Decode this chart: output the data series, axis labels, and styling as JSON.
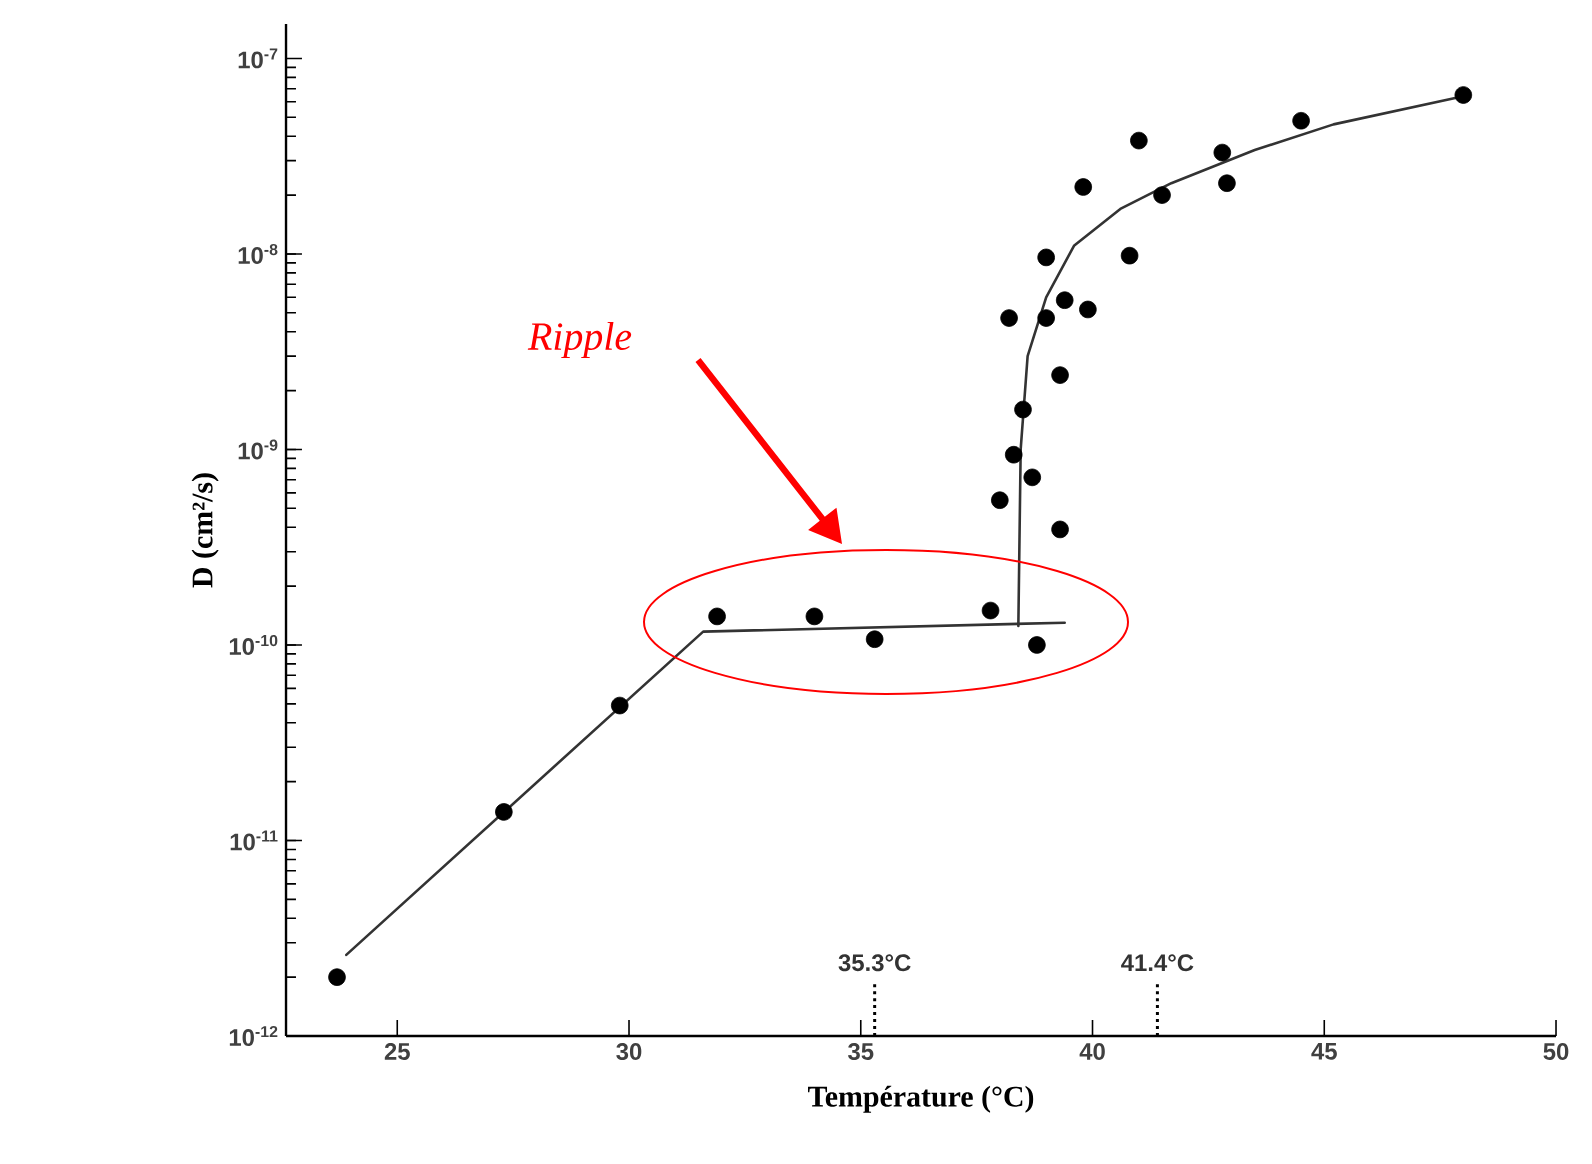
{
  "chart_data": {
    "type": "scatter",
    "xlabel": "Température (°C)",
    "ylabel": "D (cm²/s)",
    "log": "y",
    "marker": "circle",
    "line_style": "solid",
    "xlim": [
      22.6,
      50
    ],
    "ylim": [
      1e-12,
      1.5e-07
    ],
    "xticks": [
      25,
      30,
      35,
      40,
      45,
      50
    ],
    "yticks": [
      {
        "value": 1e-12,
        "label": "10$^{-12}$"
      },
      {
        "value": 1e-11,
        "label": "10$^{-11}$"
      },
      {
        "value": 1e-10,
        "label": "10$^{-10}$"
      },
      {
        "value": 1e-09,
        "label": "10$^{-9}$"
      },
      {
        "value": 1e-08,
        "label": "10$^{-8}$"
      },
      {
        "value": 1e-07,
        "label": "10$^{-7}$"
      }
    ],
    "series": [
      {
        "type": "scatter",
        "color": "#000000",
        "x": [
          23.7,
          27.3,
          29.8,
          31.9,
          34.0,
          35.3,
          37.8,
          38.8,
          38.0,
          39.3,
          38.7,
          38.3,
          38.5,
          39.3,
          38.2,
          39.0,
          39.4,
          39.9,
          39.0,
          40.8,
          39.8,
          41.0,
          41.5,
          42.8,
          42.9,
          44.5,
          48.0
        ],
        "values": [
          2e-12,
          1.4e-11,
          4.9e-11,
          1.4e-10,
          1.4e-10,
          1.07e-10,
          1.5e-10,
          1e-10,
          5.5e-10,
          3.9e-10,
          7.2e-10,
          9.4e-10,
          1.6e-09,
          2.4e-09,
          4.7e-09,
          4.7e-09,
          5.8e-09,
          5.2e-09,
          9.6e-09,
          9.8e-09,
          2.2e-08,
          3.8e-08,
          2e-08,
          3.3e-08,
          2.3e-08,
          4.8e-08,
          6.5e-08
        ]
      },
      {
        "type": "line",
        "marker": "none",
        "color": "#333333",
        "x": [
          23.9,
          31.6,
          39.4
        ],
        "values": [
          2.6e-12,
          1.17e-10,
          1.3e-10
        ]
      },
      {
        "type": "line",
        "marker": "none",
        "color": "#333333",
        "x": [
          38.4,
          38.45,
          38.6,
          39.0,
          39.6,
          40.6,
          41.7,
          43.5,
          45.2,
          48.0
        ],
        "values": [
          1.25e-10,
          1e-09,
          3e-09,
          6e-09,
          1.1e-08,
          1.7e-08,
          2.3e-08,
          3.4e-08,
          4.6e-08,
          6.4e-08
        ]
      }
    ],
    "ref_lines": [
      {
        "axis": "x",
        "value": 35.3,
        "label": "35.3°C",
        "line_style": "dotted"
      },
      {
        "axis": "x",
        "value": 41.4,
        "label": "41.4°C",
        "line_style": "dotted"
      }
    ],
    "annotations": [
      "Ripple"
    ]
  }
}
